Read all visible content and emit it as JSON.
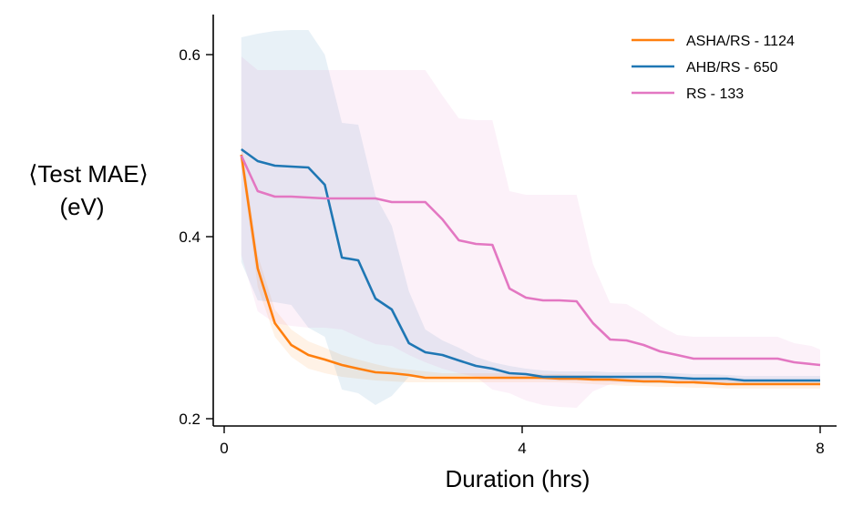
{
  "chart_data": {
    "type": "line",
    "title": "",
    "xlabel": "Duration (hrs)",
    "ylabel_line1": "⟨Test MAE⟩",
    "ylabel_line2": "(eV)",
    "xlim": [
      -0.15,
      8.2
    ],
    "ylim": [
      0.19,
      0.645
    ],
    "xticks": [
      0,
      4,
      8
    ],
    "xtick_labels": [
      "0",
      "4",
      "8"
    ],
    "yticks": [
      0.2,
      0.4,
      0.6
    ],
    "ytick_labels": [
      "0.2",
      "0.4",
      "0.6"
    ],
    "grid": false,
    "legend_position": "top-right",
    "x": [
      0.23,
      0.45,
      0.68,
      0.9,
      1.13,
      1.35,
      1.58,
      1.8,
      2.03,
      2.25,
      2.48,
      2.7,
      2.93,
      3.15,
      3.38,
      3.6,
      3.83,
      4.05,
      4.28,
      4.5,
      4.73,
      4.95,
      5.18,
      5.4,
      5.63,
      5.85,
      6.08,
      6.3,
      6.53,
      6.75,
      6.98,
      7.2,
      7.43,
      7.65,
      7.88,
      8.0
    ],
    "series": [
      {
        "name": "ASHA/RS - 1124",
        "color": "#ff7f0e",
        "values": [
          0.49,
          0.365,
          0.305,
          0.281,
          0.27,
          0.265,
          0.259,
          0.255,
          0.251,
          0.25,
          0.248,
          0.245,
          0.245,
          0.245,
          0.245,
          0.245,
          0.245,
          0.245,
          0.245,
          0.244,
          0.244,
          0.243,
          0.243,
          0.242,
          0.241,
          0.241,
          0.24,
          0.24,
          0.239,
          0.238,
          0.238,
          0.238,
          0.238,
          0.238,
          0.238,
          0.238
        ],
        "lower": [
          0.48,
          0.345,
          0.29,
          0.268,
          0.255,
          0.25,
          0.246,
          0.244,
          0.242,
          0.241,
          0.24,
          0.24,
          0.24,
          0.24,
          0.24,
          0.24,
          0.24,
          0.24,
          0.24,
          0.24,
          0.239,
          0.238,
          0.237,
          0.236,
          0.236,
          0.235,
          0.235,
          0.234,
          0.234,
          0.233,
          0.233,
          0.233,
          0.233,
          0.233,
          0.233,
          0.233
        ],
        "upper": [
          0.505,
          0.38,
          0.32,
          0.298,
          0.285,
          0.278,
          0.27,
          0.265,
          0.26,
          0.256,
          0.254,
          0.252,
          0.25,
          0.25,
          0.25,
          0.25,
          0.25,
          0.25,
          0.249,
          0.249,
          0.248,
          0.248,
          0.247,
          0.246,
          0.246,
          0.245,
          0.245,
          0.244,
          0.244,
          0.243,
          0.243,
          0.243,
          0.243,
          0.243,
          0.243,
          0.243
        ]
      },
      {
        "name": "AHB/RS - 650",
        "color": "#1f77b4",
        "values": [
          0.496,
          0.483,
          0.478,
          0.477,
          0.476,
          0.457,
          0.377,
          0.374,
          0.332,
          0.32,
          0.283,
          0.273,
          0.27,
          0.264,
          0.258,
          0.255,
          0.25,
          0.249,
          0.246,
          0.246,
          0.246,
          0.246,
          0.246,
          0.246,
          0.246,
          0.246,
          0.245,
          0.244,
          0.244,
          0.244,
          0.242,
          0.242,
          0.242,
          0.242,
          0.242,
          0.242
        ],
        "lower": [
          0.372,
          0.33,
          0.328,
          0.325,
          0.3,
          0.29,
          0.232,
          0.228,
          0.215,
          0.225,
          0.246,
          0.247,
          0.247,
          0.247,
          0.247,
          0.247,
          0.246,
          0.245,
          0.243,
          0.242,
          0.242,
          0.242,
          0.241,
          0.24,
          0.239,
          0.239,
          0.239,
          0.239,
          0.239,
          0.239,
          0.239,
          0.239,
          0.239,
          0.239,
          0.239,
          0.239
        ],
        "upper": [
          0.619,
          0.623,
          0.626,
          0.627,
          0.627,
          0.6,
          0.525,
          0.523,
          0.445,
          0.412,
          0.34,
          0.298,
          0.286,
          0.278,
          0.268,
          0.262,
          0.258,
          0.255,
          0.253,
          0.252,
          0.252,
          0.252,
          0.251,
          0.251,
          0.251,
          0.251,
          0.25,
          0.249,
          0.249,
          0.248,
          0.247,
          0.247,
          0.247,
          0.247,
          0.247,
          0.247
        ]
      },
      {
        "name": "RS - 133",
        "color": "#e377c2",
        "values": [
          0.489,
          0.45,
          0.444,
          0.444,
          0.443,
          0.442,
          0.442,
          0.442,
          0.442,
          0.438,
          0.438,
          0.438,
          0.419,
          0.396,
          0.392,
          0.391,
          0.343,
          0.333,
          0.33,
          0.33,
          0.329,
          0.305,
          0.287,
          0.286,
          0.281,
          0.274,
          0.27,
          0.266,
          0.266,
          0.266,
          0.266,
          0.266,
          0.266,
          0.262,
          0.26,
          0.259
        ],
        "lower": [
          0.38,
          0.318,
          0.305,
          0.302,
          0.3,
          0.3,
          0.298,
          0.29,
          0.282,
          0.28,
          0.27,
          0.262,
          0.255,
          0.25,
          0.246,
          0.232,
          0.228,
          0.22,
          0.215,
          0.213,
          0.212,
          0.23,
          0.238,
          0.239,
          0.24,
          0.24,
          0.24,
          0.24,
          0.24,
          0.24,
          0.24,
          0.24,
          0.24,
          0.24,
          0.24,
          0.24
        ],
        "upper": [
          0.598,
          0.583,
          0.583,
          0.583,
          0.583,
          0.583,
          0.583,
          0.583,
          0.583,
          0.583,
          0.583,
          0.583,
          0.555,
          0.53,
          0.528,
          0.528,
          0.45,
          0.446,
          0.446,
          0.446,
          0.446,
          0.37,
          0.327,
          0.326,
          0.315,
          0.302,
          0.292,
          0.29,
          0.29,
          0.29,
          0.29,
          0.29,
          0.29,
          0.283,
          0.28,
          0.276
        ]
      }
    ]
  }
}
